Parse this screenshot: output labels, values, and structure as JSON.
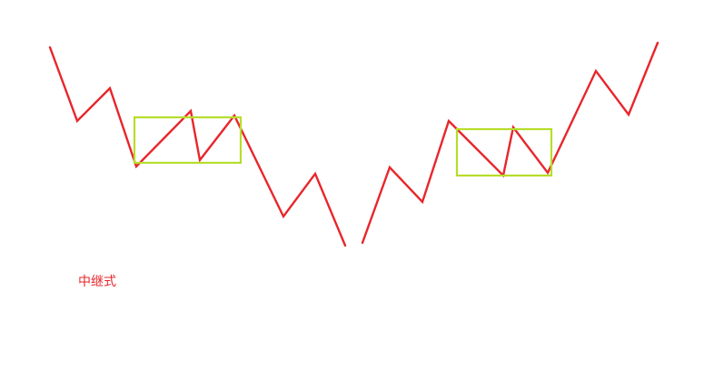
{
  "diagram": {
    "caption": "中继式",
    "colors": {
      "line": "#e8262b",
      "box": "#b7dd2a",
      "caption": "#e8262b",
      "background": "#ffffff"
    }
  }
}
